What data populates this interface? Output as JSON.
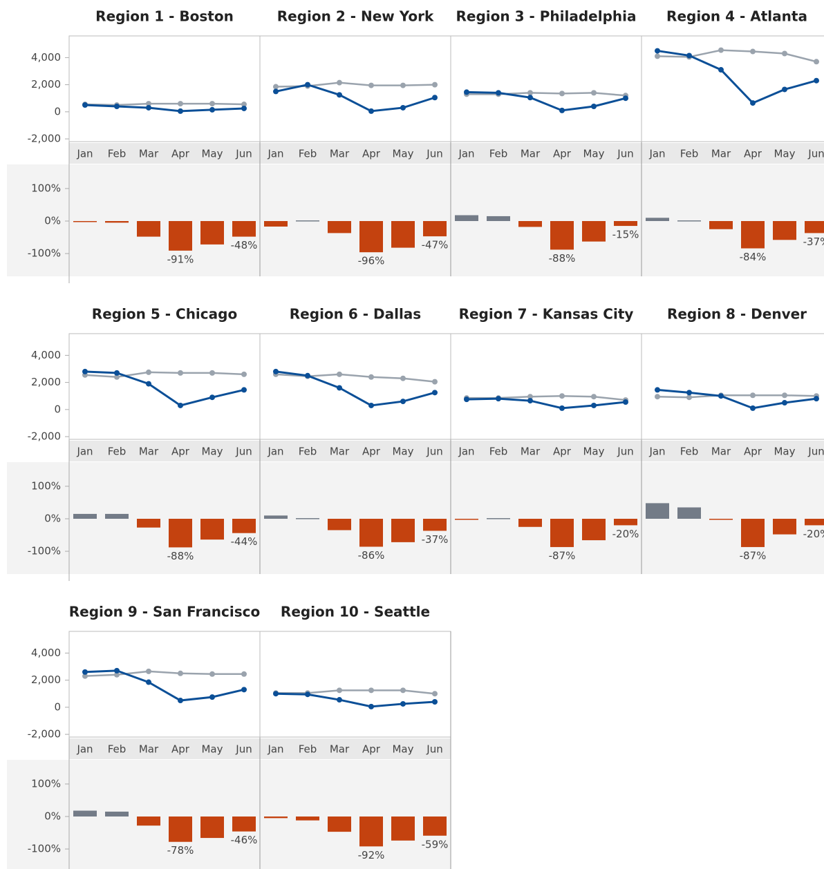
{
  "chart_data": {
    "categories": [
      "Jan",
      "Feb",
      "Mar",
      "Apr",
      "May",
      "Jun"
    ],
    "line_axis": {
      "ylim": [
        -2200,
        5600
      ],
      "yticks": [
        {
          "value": -2000,
          "label": "-2,000"
        },
        0,
        {
          "value": 2000,
          "label": "2,000"
        },
        {
          "value": 4000,
          "label": "4,000"
        }
      ]
    },
    "bar_axis": {
      "ylim": [
        -170,
        170
      ],
      "yticks": [
        {
          "value": -100,
          "label": "-100%"
        },
        {
          "value": 0,
          "label": "0%"
        },
        {
          "value": 100,
          "label": "100%"
        }
      ]
    },
    "bar_colors": {
      "positive": "#737b87",
      "negative": "#c4420f"
    },
    "regions": [
      {
        "title": "Region 1 - Boston",
        "line": {
          "type": "line",
          "series": [
            {
              "color": "#9aa3ad",
              "values": [
                550,
                500,
                600,
                600,
                600,
                550
              ]
            },
            {
              "color": "#0b4f97",
              "values": [
                500,
                400,
                300,
                50,
                150,
                250
              ]
            }
          ]
        },
        "bar": {
          "type": "bar",
          "values": [
            -2,
            -5,
            -48,
            -91,
            -72,
            -48
          ],
          "value_labels": [
            null,
            null,
            null,
            "-91%",
            null,
            "-48%"
          ]
        }
      },
      {
        "title": "Region 2 - New York",
        "line": {
          "type": "line",
          "series": [
            {
              "color": "#9aa3ad",
              "values": [
                1850,
                1900,
                2150,
                1950,
                1950,
                2000
              ]
            },
            {
              "color": "#0b4f97",
              "values": [
                1500,
                2000,
                1250,
                50,
                300,
                1050
              ]
            }
          ]
        },
        "bar": {
          "type": "bar",
          "values": [
            -17,
            2,
            -37,
            -96,
            -82,
            -47
          ],
          "value_labels": [
            null,
            null,
            null,
            "-96%",
            null,
            "-47%"
          ]
        }
      },
      {
        "title": "Region 3 - Philadelphia",
        "line": {
          "type": "line",
          "series": [
            {
              "color": "#9aa3ad",
              "values": [
                1300,
                1300,
                1400,
                1350,
                1400,
                1200
              ]
            },
            {
              "color": "#0b4f97",
              "values": [
                1450,
                1400,
                1050,
                100,
                400,
                1000
              ]
            }
          ]
        },
        "bar": {
          "type": "bar",
          "values": [
            18,
            15,
            -18,
            -88,
            -63,
            -15
          ],
          "value_labels": [
            null,
            null,
            null,
            "-88%",
            null,
            "-15%"
          ]
        }
      },
      {
        "title": "Region 4 - Atlanta",
        "line": {
          "type": "line",
          "series": [
            {
              "color": "#9aa3ad",
              "values": [
                4100,
                4050,
                4550,
                4450,
                4300,
                3700
              ]
            },
            {
              "color": "#0b4f97",
              "values": [
                4500,
                4150,
                3100,
                650,
                1650,
                2300
              ]
            }
          ]
        },
        "bar": {
          "type": "bar",
          "values": [
            10,
            2,
            -25,
            -84,
            -58,
            -37
          ],
          "value_labels": [
            null,
            null,
            null,
            "-84%",
            null,
            "-37%"
          ]
        }
      },
      {
        "title": "Region 5 - Chicago",
        "line": {
          "type": "line",
          "series": [
            {
              "color": "#9aa3ad",
              "values": [
                2550,
                2400,
                2750,
                2700,
                2700,
                2600
              ]
            },
            {
              "color": "#0b4f97",
              "values": [
                2800,
                2700,
                1900,
                300,
                900,
                1450
              ]
            }
          ]
        },
        "bar": {
          "type": "bar",
          "values": [
            15,
            15,
            -27,
            -88,
            -64,
            -44
          ],
          "value_labels": [
            null,
            null,
            null,
            "-88%",
            null,
            "-44%"
          ]
        }
      },
      {
        "title": "Region 6 - Dallas",
        "line": {
          "type": "line",
          "series": [
            {
              "color": "#9aa3ad",
              "values": [
                2600,
                2450,
                2600,
                2400,
                2300,
                2050
              ]
            },
            {
              "color": "#0b4f97",
              "values": [
                2800,
                2500,
                1600,
                300,
                600,
                1250
              ]
            }
          ]
        },
        "bar": {
          "type": "bar",
          "values": [
            10,
            2,
            -35,
            -86,
            -72,
            -37
          ],
          "value_labels": [
            null,
            null,
            null,
            "-86%",
            null,
            "-37%"
          ]
        }
      },
      {
        "title": "Region 7 - Kansas City",
        "line": {
          "type": "line",
          "series": [
            {
              "color": "#9aa3ad",
              "values": [
                850,
                850,
                950,
                1000,
                950,
                700
              ]
            },
            {
              "color": "#0b4f97",
              "values": [
                750,
                800,
                650,
                100,
                300,
                550
              ]
            }
          ]
        },
        "bar": {
          "type": "bar",
          "values": [
            -3,
            2,
            -25,
            -87,
            -66,
            -20
          ],
          "value_labels": [
            null,
            null,
            null,
            "-87%",
            null,
            "-20%"
          ]
        }
      },
      {
        "title": "Region 8 - Denver",
        "line": {
          "type": "line",
          "series": [
            {
              "color": "#9aa3ad",
              "values": [
                950,
                900,
                1050,
                1050,
                1050,
                1000
              ]
            },
            {
              "color": "#0b4f97",
              "values": [
                1450,
                1250,
                1000,
                100,
                500,
                800
              ]
            }
          ]
        },
        "bar": {
          "type": "bar",
          "values": [
            48,
            35,
            -3,
            -87,
            -48,
            -20
          ],
          "value_labels": [
            null,
            null,
            null,
            "-87%",
            null,
            "-20%"
          ]
        }
      },
      {
        "title": "Region 9 - San Francisco",
        "line": {
          "type": "line",
          "series": [
            {
              "color": "#9aa3ad",
              "values": [
                2300,
                2400,
                2650,
                2500,
                2450,
                2450
              ]
            },
            {
              "color": "#0b4f97",
              "values": [
                2600,
                2700,
                1850,
                500,
                750,
                1300
              ]
            }
          ]
        },
        "bar": {
          "type": "bar",
          "values": [
            18,
            15,
            -28,
            -78,
            -66,
            -46
          ],
          "value_labels": [
            null,
            null,
            null,
            "-78%",
            null,
            "-46%"
          ]
        }
      },
      {
        "title": "Region 10 - Seattle",
        "line": {
          "type": "line",
          "series": [
            {
              "color": "#9aa3ad",
              "values": [
                1050,
                1050,
                1250,
                1250,
                1250,
                1000
              ]
            },
            {
              "color": "#0b4f97",
              "values": [
                1000,
                950,
                550,
                50,
                250,
                400
              ]
            }
          ]
        },
        "bar": {
          "type": "bar",
          "values": [
            -5,
            -12,
            -47,
            -92,
            -74,
            -59
          ],
          "value_labels": [
            null,
            null,
            null,
            "-92%",
            null,
            "-59%"
          ]
        }
      }
    ]
  }
}
